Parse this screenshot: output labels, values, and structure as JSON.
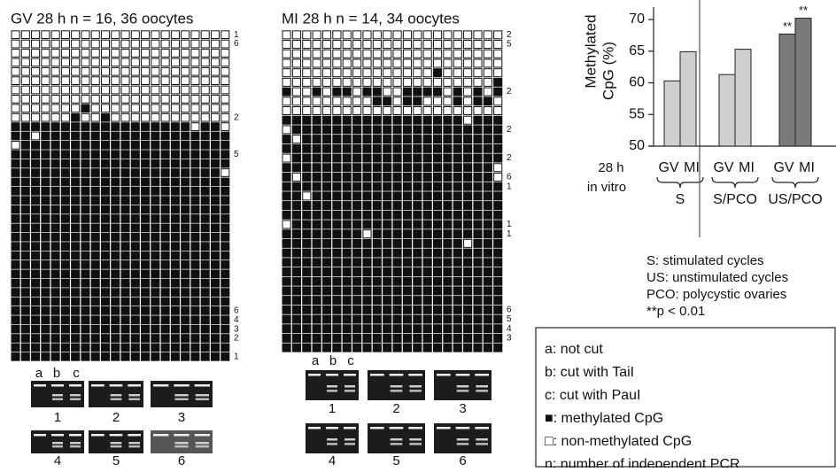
{
  "panels": {
    "gv": {
      "title": "GV 28 h n = 16, 36 oocytes",
      "rows": [
        "0000000000000000000000",
        "0000000000000000000000",
        "0000000000000000000000",
        "0000000000000000000000",
        "0000000000000000000000",
        "0000000000000000000000",
        "0000000000000000000000",
        "0000000000000000000000",
        "0000000100000000000000",
        "0000001001000000000000",
        "1111111111111111110110",
        "1101111111111111111111",
        "0111111111111111111111",
        "1111111111111111111111",
        "1111111111111111111111",
        "1111111111111111111110",
        "1111111111111111111111",
        "1111111111111111111111",
        "1111111111111111111111",
        "1111111111111111111111",
        "1111111111111111111111",
        "1111111111111111111111",
        "1111111111111111111111",
        "1111111111111111111111",
        "1111111111111111111111",
        "1111111111111111111111",
        "1111111111111111111111",
        "1111111111111111111111",
        "1111111111111111111111",
        "1111111111111111111111",
        "1111111111111111111111",
        "1111111111111111111111",
        "1111111111111111111111",
        "1111111111111111111111",
        "1111111111111111111111",
        "1111111111111111111111"
      ],
      "row_labels": [
        "1",
        "6",
        null,
        null,
        null,
        null,
        null,
        null,
        null,
        "2",
        null,
        null,
        null,
        "5",
        null,
        null,
        null,
        null,
        null,
        null,
        null,
        null,
        null,
        null,
        null,
        null,
        null,
        null,
        null,
        null,
        "6",
        "4",
        "3",
        "2",
        null,
        "1"
      ],
      "lane_labels": [
        "a",
        "b",
        "c"
      ],
      "gel_numbers": [
        "1",
        "2",
        "3",
        "4",
        "5",
        "6"
      ]
    },
    "mi": {
      "title": "MI 28 h n = 14, 34 oocytes",
      "rows": [
        "0000000000000000000000",
        "0000000000000000000000",
        "0000000000000000000000",
        "0000000000000000000000",
        "0000000000000001000000",
        "0000000000000000000001",
        "1001011011001111010101",
        "0000000001101100010110",
        "0000000000000000000000",
        "1111111111111111110111",
        "0111111111111111111111",
        "1011111111111111111111",
        "1111111111111111111111",
        "0111111111111111111111",
        "1111111111111111111110",
        "1011111111111111111110",
        "1111111111111111111111",
        "1101111111111111111111",
        "1111111111111111111111",
        "1111111111111111111111",
        "0111111111111111111111",
        "1111111101111111111111",
        "1111111111111111110111",
        "1111111111111111111111",
        "1111111111111111111111",
        "1111111111111111111111",
        "1111111111111111111111",
        "1111111111111111111111",
        "1111111111111111111111",
        "1111111111111111111111",
        "1111111111111111111111",
        "1111111111111111111111",
        "1111111111111111111111",
        "1111111111111111111111"
      ],
      "row_labels": [
        "2",
        "5",
        null,
        null,
        null,
        null,
        "2",
        null,
        null,
        null,
        "2",
        null,
        null,
        "2",
        null,
        "6",
        "1",
        null,
        null,
        null,
        "1",
        "1",
        null,
        null,
        null,
        null,
        null,
        null,
        null,
        "6",
        "5",
        "4",
        "3",
        null
      ],
      "lane_labels": [
        "a",
        "b",
        "c"
      ],
      "gel_numbers": [
        "1",
        "2",
        "3",
        "4",
        "5",
        "6"
      ]
    }
  },
  "chart_data": {
    "type": "bar",
    "y_label_lines": [
      "Methylated",
      "CpG (%)"
    ],
    "categories": [
      "GV",
      "MI",
      "GV",
      "MI",
      "GV",
      "MI"
    ],
    "groups": [
      "S",
      "S/PCO",
      "US/PCO"
    ],
    "x_label_lines": [
      "28 h",
      "in vitro"
    ],
    "values": [
      60.3,
      64.9,
      61.3,
      65.3,
      67.7,
      70.2
    ],
    "colors": [
      "#cfcfcf",
      "#cfcfcf",
      "#cfcfcf",
      "#cfcfcf",
      "#7a7a7a",
      "#7a7a7a"
    ],
    "significance": [
      null,
      null,
      null,
      null,
      "**",
      "**"
    ],
    "ylim": [
      50,
      70
    ],
    "yticks": [
      50,
      55,
      60,
      65,
      70
    ],
    "notes": [
      "S: stimulated cycles",
      "US: unstimulated cycles",
      "PCO: polycystic ovaries",
      "**p < 0.01"
    ]
  },
  "legend": [
    "a: not cut",
    "b: cut with TaiI",
    "c: cut with PauI",
    "■: methylated CpG",
    "□: non-methylated CpG",
    "n: number of independent PCR"
  ]
}
